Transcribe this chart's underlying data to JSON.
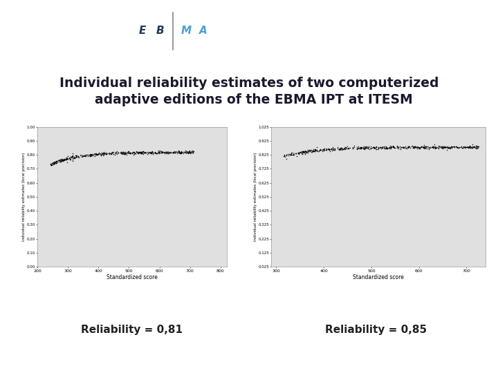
{
  "title_line1": "Individual reliability estimates of two computerized",
  "title_line2": "  adaptive editions of the EBMA IPT at ITESM",
  "title_color": "#1a1a2e",
  "title_fontsize": 13.5,
  "title_fontweight": "bold",
  "background_color": "#ffffff",
  "plot_bg_color": "#e0e0e0",
  "label1": "Reliability = 0,81",
  "label2": "Reliability = 0,85",
  "label_fontsize": 11,
  "label_fontweight": "bold",
  "ylabel1": "individual reliability estimates (local precision)",
  "ylabel2": "Individual reliability estimates (local precision)",
  "xlabel": "Standardized score",
  "dot_color": "#000000",
  "dot_size": 1.2,
  "ebma_bar_color": "#4a7fb5",
  "ebma_dark_color": "#1a3a5c",
  "ebma_light_color": "#4a9fd4",
  "logo_text_color_eb": "#1a3a5c",
  "logo_text_color_ma": "#4a9fd4"
}
